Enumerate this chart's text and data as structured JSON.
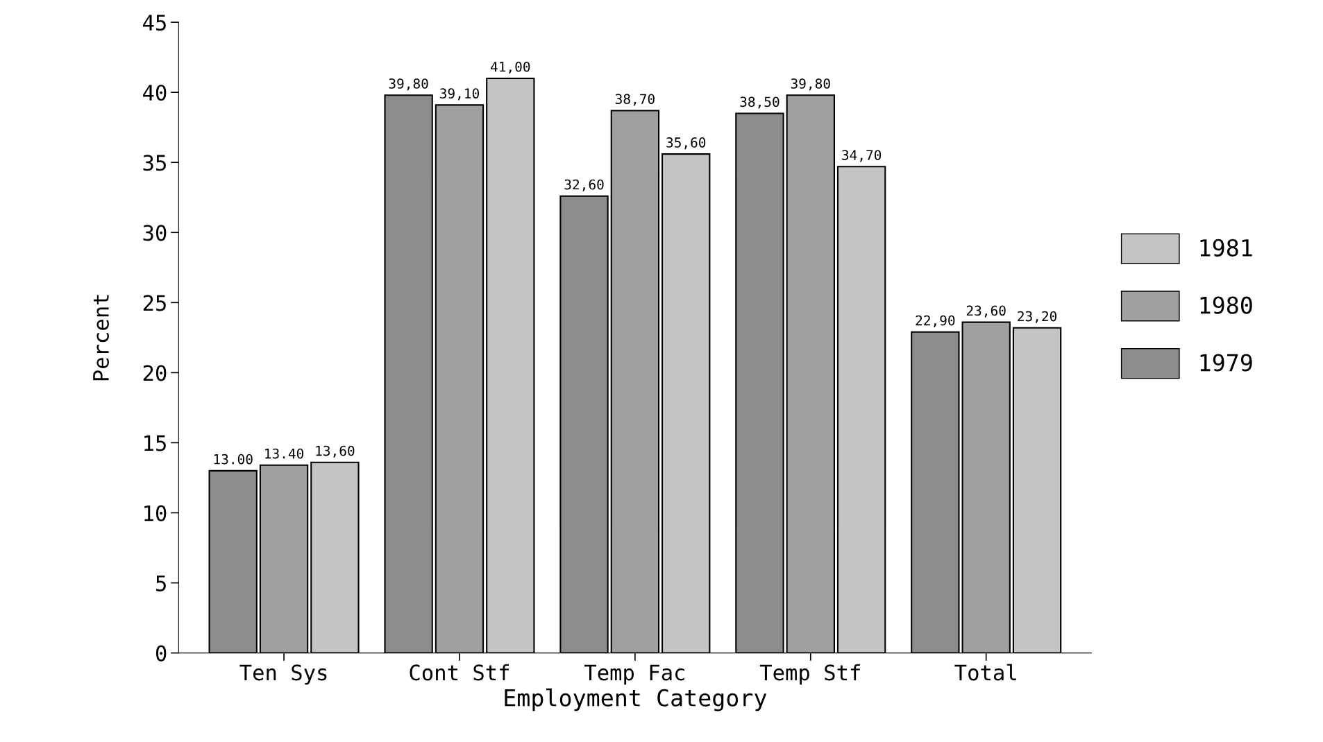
{
  "chart_data": {
    "type": "bar",
    "xlabel": "Employment Category",
    "ylabel": "Percent",
    "categories": [
      "Ten Sys",
      "Cont Stf",
      "Temp Fac",
      "Temp Stf",
      "Total"
    ],
    "series": [
      {
        "name": "1979",
        "color": "#8c8c8c",
        "values": [
          13.0,
          39.8,
          32.6,
          38.5,
          22.9
        ],
        "value_labels": [
          "13.00",
          "39,80",
          "32,60",
          "38,50",
          "22,90"
        ]
      },
      {
        "name": "1980",
        "color": "#a0a0a0",
        "values": [
          13.4,
          39.1,
          38.7,
          39.8,
          23.6
        ],
        "value_labels": [
          "13.40",
          "39,10",
          "38,70",
          "39,80",
          "23,60"
        ]
      },
      {
        "name": "1981",
        "color": "#c4c4c4",
        "values": [
          13.6,
          41.0,
          35.6,
          34.7,
          23.2
        ],
        "value_labels": [
          "13,60",
          "41,00",
          "35,60",
          "34,70",
          "23,20"
        ]
      }
    ],
    "ylim": [
      0,
      45
    ],
    "yticks": [
      0,
      5,
      10,
      15,
      20,
      25,
      30,
      35,
      40,
      45
    ],
    "grid": false,
    "legend": "right"
  }
}
